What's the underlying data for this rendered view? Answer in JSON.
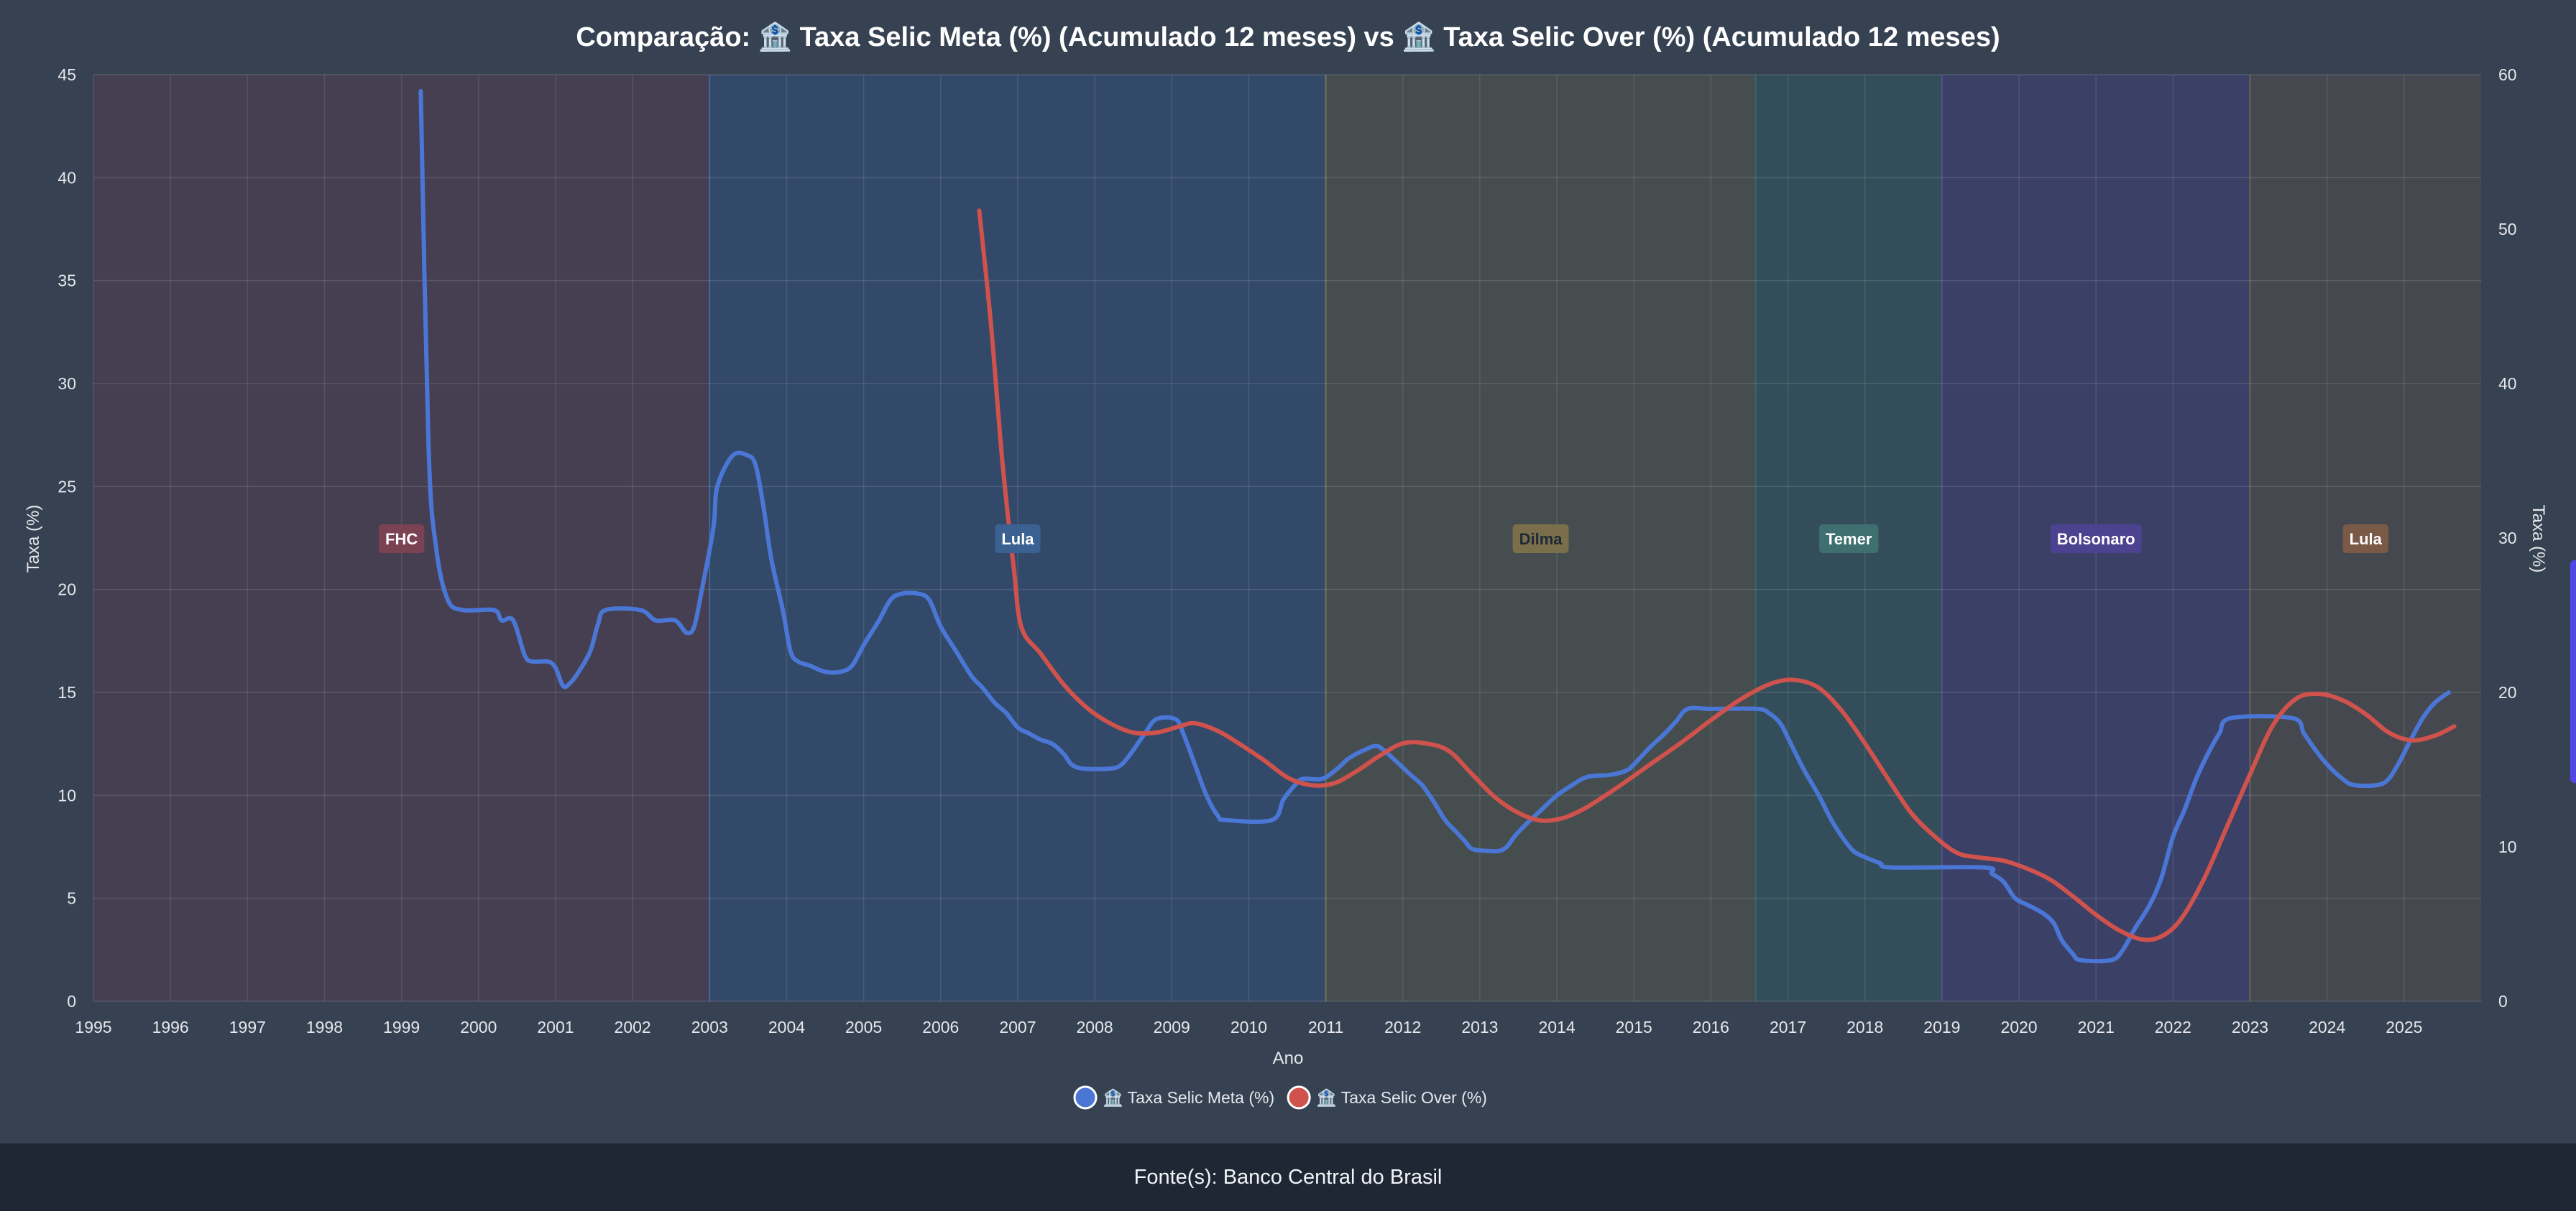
{
  "chart_data": {
    "type": "line",
    "title": "Comparação: 🏦 Taxa Selic Meta (%) (Acumulado 12 meses) vs 🏦 Taxa Selic Over (%) (Acumulado 12 meses)",
    "xlabel": "Ano",
    "ylabel_left": "Taxa (%)",
    "ylabel_right": "Taxa (%)",
    "x_ticks": [
      "1995",
      "1996",
      "1997",
      "1998",
      "1999",
      "2000",
      "2001",
      "2002",
      "2003",
      "2004",
      "2005",
      "2006",
      "2007",
      "2008",
      "2009",
      "2010",
      "2011",
      "2012",
      "2013",
      "2014",
      "2015",
      "2016",
      "2017",
      "2018",
      "2019",
      "2020",
      "2021",
      "2022",
      "2023",
      "2024",
      "2025"
    ],
    "xlim": [
      1995,
      2026.0
    ],
    "ylim_left": [
      0,
      45
    ],
    "ylim_right": [
      0,
      60
    ],
    "yticks_left": [
      "0",
      "5",
      "10",
      "15",
      "20",
      "25",
      "30",
      "35",
      "40",
      "45"
    ],
    "yticks_right": [
      "0",
      "10",
      "20",
      "30",
      "40",
      "50",
      "60"
    ],
    "grid": true,
    "legend_position": "bottom",
    "periods": [
      {
        "label": "FHC",
        "start": 1995.0,
        "end": 2003.0,
        "fill": "#6b3a4f",
        "badge": "#7a4253",
        "text": "#ffffff"
      },
      {
        "label": "Lula",
        "start": 2003.0,
        "end": 2011.0,
        "fill": "#2f5e9e",
        "badge": "#3a6191",
        "text": "#ffffff"
      },
      {
        "label": "Dilma",
        "start": 2011.0,
        "end": 2016.58,
        "fill": "#6e6a48",
        "badge": "#7a6f4a",
        "text": "#1f2937"
      },
      {
        "label": "Temer",
        "start": 2016.58,
        "end": 2019.0,
        "fill": "#2f6e6e",
        "badge": "#3f6f70",
        "text": "#ffffff"
      },
      {
        "label": "Bolsonaro",
        "start": 2019.0,
        "end": 2023.0,
        "fill": "#4a3f95",
        "badge": "#4d4290",
        "text": "#ffffff"
      },
      {
        "label": "Lula",
        "start": 2023.0,
        "end": 2026.0,
        "fill": "#6e5a48",
        "badge": "#7a5a47",
        "text": "#ffffff"
      }
    ],
    "series": [
      {
        "name": "🏦 Taxa Selic Meta (%)",
        "axis": "left",
        "color": "#4a76d6",
        "points": [
          [
            1999.25,
            44.2
          ],
          [
            1999.35,
            27
          ],
          [
            1999.45,
            22
          ],
          [
            1999.6,
            19.5
          ],
          [
            1999.8,
            19
          ],
          [
            2000.2,
            19
          ],
          [
            2000.3,
            18.5
          ],
          [
            2000.45,
            18.5
          ],
          [
            2000.6,
            16.8
          ],
          [
            2000.7,
            16.5
          ],
          [
            2000.9,
            16.5
          ],
          [
            2001.0,
            16.2
          ],
          [
            2001.1,
            15.3
          ],
          [
            2001.2,
            15.5
          ],
          [
            2001.3,
            16
          ],
          [
            2001.45,
            17
          ],
          [
            2001.55,
            18.3
          ],
          [
            2001.65,
            19
          ],
          [
            2002.1,
            19
          ],
          [
            2002.3,
            18.5
          ],
          [
            2002.55,
            18.5
          ],
          [
            2002.7,
            17.9
          ],
          [
            2002.8,
            18.2
          ],
          [
            2002.9,
            20
          ],
          [
            2003.05,
            23
          ],
          [
            2003.1,
            25
          ],
          [
            2003.3,
            26.5
          ],
          [
            2003.5,
            26.5
          ],
          [
            2003.6,
            26
          ],
          [
            2003.7,
            24
          ],
          [
            2003.8,
            21.5
          ],
          [
            2003.95,
            19
          ],
          [
            2004.05,
            17
          ],
          [
            2004.15,
            16.5
          ],
          [
            2004.3,
            16.3
          ],
          [
            2004.5,
            16
          ],
          [
            2004.7,
            16
          ],
          [
            2004.85,
            16.3
          ],
          [
            2005.0,
            17.3
          ],
          [
            2005.2,
            18.5
          ],
          [
            2005.35,
            19.5
          ],
          [
            2005.5,
            19.8
          ],
          [
            2005.7,
            19.8
          ],
          [
            2005.85,
            19.5
          ],
          [
            2006.0,
            18.2
          ],
          [
            2006.2,
            17
          ],
          [
            2006.4,
            15.8
          ],
          [
            2006.55,
            15.2
          ],
          [
            2006.7,
            14.5
          ],
          [
            2006.85,
            14
          ],
          [
            2007.0,
            13.3
          ],
          [
            2007.15,
            13
          ],
          [
            2007.3,
            12.7
          ],
          [
            2007.45,
            12.5
          ],
          [
            2007.6,
            12
          ],
          [
            2007.7,
            11.5
          ],
          [
            2007.85,
            11.3
          ],
          [
            2008.2,
            11.3
          ],
          [
            2008.35,
            11.5
          ],
          [
            2008.5,
            12.2
          ],
          [
            2008.65,
            13
          ],
          [
            2008.8,
            13.7
          ],
          [
            2009.05,
            13.7
          ],
          [
            2009.15,
            13
          ],
          [
            2009.3,
            11.5
          ],
          [
            2009.45,
            10
          ],
          [
            2009.6,
            9
          ],
          [
            2009.7,
            8.8
          ],
          [
            2010.3,
            8.8
          ],
          [
            2010.45,
            9.8
          ],
          [
            2010.6,
            10.5
          ],
          [
            2010.7,
            10.8
          ],
          [
            2010.95,
            10.8
          ],
          [
            2011.15,
            11.3
          ],
          [
            2011.3,
            11.8
          ],
          [
            2011.5,
            12.2
          ],
          [
            2011.65,
            12.4
          ],
          [
            2011.75,
            12.2
          ],
          [
            2011.9,
            11.7
          ],
          [
            2012.1,
            11
          ],
          [
            2012.25,
            10.5
          ],
          [
            2012.4,
            9.7
          ],
          [
            2012.55,
            8.8
          ],
          [
            2012.7,
            8.2
          ],
          [
            2012.8,
            7.8
          ],
          [
            2012.9,
            7.4
          ],
          [
            2013.1,
            7.3
          ],
          [
            2013.25,
            7.3
          ],
          [
            2013.35,
            7.5
          ],
          [
            2013.45,
            8
          ],
          [
            2013.6,
            8.6
          ],
          [
            2013.8,
            9.3
          ],
          [
            2014.0,
            10
          ],
          [
            2014.2,
            10.5
          ],
          [
            2014.4,
            10.9
          ],
          [
            2014.7,
            11
          ],
          [
            2014.9,
            11.2
          ],
          [
            2015.0,
            11.5
          ],
          [
            2015.2,
            12.3
          ],
          [
            2015.4,
            13
          ],
          [
            2015.55,
            13.6
          ],
          [
            2015.7,
            14.2
          ],
          [
            2016.0,
            14.2
          ],
          [
            2016.6,
            14.2
          ],
          [
            2016.75,
            14
          ],
          [
            2016.9,
            13.5
          ],
          [
            2017.0,
            12.8
          ],
          [
            2017.2,
            11.3
          ],
          [
            2017.4,
            10
          ],
          [
            2017.55,
            8.9
          ],
          [
            2017.7,
            8
          ],
          [
            2017.85,
            7.3
          ],
          [
            2018.0,
            7
          ],
          [
            2018.2,
            6.7
          ],
          [
            2018.35,
            6.5
          ],
          [
            2019.55,
            6.5
          ],
          [
            2019.65,
            6.2
          ],
          [
            2019.8,
            5.8
          ],
          [
            2019.95,
            5
          ],
          [
            2020.1,
            4.7
          ],
          [
            2020.3,
            4.3
          ],
          [
            2020.45,
            3.8
          ],
          [
            2020.55,
            3
          ],
          [
            2020.7,
            2.3
          ],
          [
            2020.8,
            2
          ],
          [
            2021.2,
            2
          ],
          [
            2021.35,
            2.5
          ],
          [
            2021.5,
            3.5
          ],
          [
            2021.7,
            4.7
          ],
          [
            2021.85,
            6
          ],
          [
            2022.0,
            8
          ],
          [
            2022.15,
            9.3
          ],
          [
            2022.3,
            10.8
          ],
          [
            2022.45,
            12
          ],
          [
            2022.6,
            13
          ],
          [
            2022.75,
            13.75
          ],
          [
            2023.55,
            13.75
          ],
          [
            2023.7,
            13
          ],
          [
            2023.85,
            12.2
          ],
          [
            2024.0,
            11.5
          ],
          [
            2024.2,
            10.8
          ],
          [
            2024.35,
            10.5
          ],
          [
            2024.65,
            10.5
          ],
          [
            2024.8,
            10.8
          ],
          [
            2024.95,
            11.7
          ],
          [
            2025.1,
            12.8
          ],
          [
            2025.25,
            13.8
          ],
          [
            2025.4,
            14.5
          ],
          [
            2025.58,
            15
          ]
        ]
      },
      {
        "name": "🏦 Taxa Selic Over (%)",
        "axis": "right",
        "color": "#d0524c",
        "points": [
          [
            2006.5,
            51.2
          ],
          [
            2006.65,
            44
          ],
          [
            2006.8,
            35
          ],
          [
            2006.95,
            28
          ],
          [
            2007.05,
            24.2
          ],
          [
            2007.3,
            22.5
          ],
          [
            2007.6,
            20.5
          ],
          [
            2007.9,
            19
          ],
          [
            2008.2,
            18
          ],
          [
            2008.5,
            17.4
          ],
          [
            2008.8,
            17.4
          ],
          [
            2009.1,
            17.8
          ],
          [
            2009.3,
            18
          ],
          [
            2009.6,
            17.5
          ],
          [
            2009.9,
            16.6
          ],
          [
            2010.2,
            15.6
          ],
          [
            2010.5,
            14.5
          ],
          [
            2010.8,
            14
          ],
          [
            2011.1,
            14.1
          ],
          [
            2011.4,
            14.9
          ],
          [
            2011.7,
            15.9
          ],
          [
            2012.0,
            16.7
          ],
          [
            2012.3,
            16.7
          ],
          [
            2012.6,
            16.2
          ],
          [
            2012.9,
            14.7
          ],
          [
            2013.2,
            13.2
          ],
          [
            2013.5,
            12.2
          ],
          [
            2013.8,
            11.7
          ],
          [
            2014.1,
            11.9
          ],
          [
            2014.4,
            12.6
          ],
          [
            2014.8,
            13.9
          ],
          [
            2015.2,
            15.3
          ],
          [
            2015.6,
            16.7
          ],
          [
            2016.0,
            18.2
          ],
          [
            2016.4,
            19.6
          ],
          [
            2016.8,
            20.6
          ],
          [
            2017.1,
            20.8
          ],
          [
            2017.4,
            20.3
          ],
          [
            2017.7,
            18.8
          ],
          [
            2018.0,
            16.7
          ],
          [
            2018.3,
            14.4
          ],
          [
            2018.6,
            12.2
          ],
          [
            2018.9,
            10.7
          ],
          [
            2019.2,
            9.6
          ],
          [
            2019.5,
            9.3
          ],
          [
            2019.8,
            9.1
          ],
          [
            2020.1,
            8.6
          ],
          [
            2020.4,
            7.9
          ],
          [
            2020.7,
            6.8
          ],
          [
            2021.0,
            5.6
          ],
          [
            2021.3,
            4.6
          ],
          [
            2021.6,
            4.0
          ],
          [
            2021.85,
            4.2
          ],
          [
            2022.1,
            5.3
          ],
          [
            2022.4,
            7.9
          ],
          [
            2022.7,
            11.3
          ],
          [
            2023.0,
            14.7
          ],
          [
            2023.3,
            17.9
          ],
          [
            2023.6,
            19.6
          ],
          [
            2023.9,
            19.9
          ],
          [
            2024.2,
            19.5
          ],
          [
            2024.5,
            18.6
          ],
          [
            2024.8,
            17.4
          ],
          [
            2025.1,
            16.9
          ],
          [
            2025.4,
            17.2
          ],
          [
            2025.65,
            17.8
          ]
        ]
      }
    ]
  },
  "footer": {
    "text": "Fonte(s): Banco Central do Brasil"
  }
}
